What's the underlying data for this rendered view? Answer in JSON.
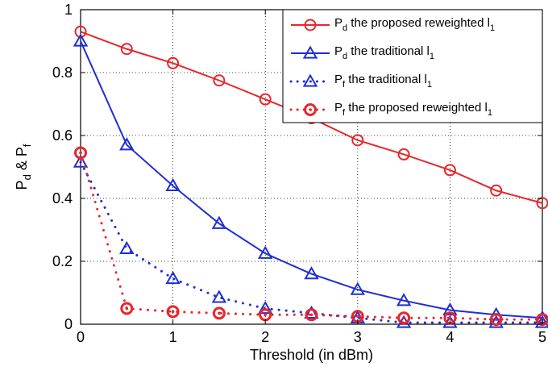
{
  "chart_data": {
    "type": "line",
    "xlabel": "Threshold (in dBm)",
    "ylabel": {
      "base1": "P",
      "sub1": "d",
      "mid": " & P",
      "sub2": "f"
    },
    "xlim": [
      0,
      5
    ],
    "ylim": [
      0,
      1
    ],
    "xticks": [
      0,
      1,
      2,
      3,
      4,
      5
    ],
    "yticks": [
      0,
      0.2,
      0.4,
      0.6,
      0.8,
      1
    ],
    "xtick_labels": [
      "0",
      "1",
      "2",
      "3",
      "4",
      "5"
    ],
    "ytick_labels": [
      "0",
      "0.2",
      "0.4",
      "0.6",
      "0.8",
      "1"
    ],
    "grid": true,
    "legend_position": "top-right",
    "x": [
      0,
      0.5,
      1,
      1.5,
      2,
      2.5,
      3,
      3.5,
      4,
      4.5,
      5
    ],
    "series": [
      {
        "name": {
          "base": "P",
          "sub": "d",
          "text": " the proposed reweighted l",
          "tail": "1"
        },
        "values": [
          0.93,
          0.875,
          0.83,
          0.775,
          0.715,
          0.655,
          0.585,
          0.54,
          0.49,
          0.425,
          0.385
        ],
        "color": "#e8262b",
        "line": "solid",
        "marker": "circle"
      },
      {
        "name": {
          "base": "P",
          "sub": "d",
          "text": " the traditional l",
          "tail": "1"
        },
        "values": [
          0.9,
          0.57,
          0.44,
          0.32,
          0.225,
          0.16,
          0.11,
          0.075,
          0.045,
          0.03,
          0.02
        ],
        "color": "#1f2fd1",
        "line": "solid",
        "marker": "triangle"
      },
      {
        "name": {
          "base": "P",
          "sub": "f",
          "text": " the traditional l",
          "tail": "1"
        },
        "values": [
          0.515,
          0.24,
          0.145,
          0.085,
          0.05,
          0.035,
          0.02,
          0.005,
          0.005,
          0.005,
          0.005
        ],
        "color": "#1f2fd1",
        "line": "dotted",
        "marker": "triangle"
      },
      {
        "name": {
          "base": "P",
          "sub": "f",
          "text": " the proposed reweighted l",
          "tail": "1"
        },
        "values": [
          0.545,
          0.05,
          0.04,
          0.035,
          0.03,
          0.03,
          0.025,
          0.02,
          0.02,
          0.015,
          0.015
        ],
        "color": "#e8262b",
        "line": "dotted",
        "marker": "circle-dot"
      }
    ]
  }
}
